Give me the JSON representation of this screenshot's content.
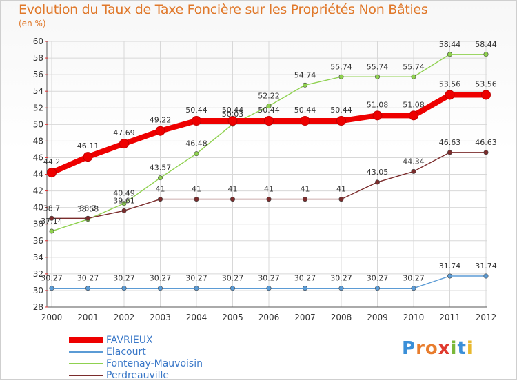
{
  "header": {
    "title": "Evolution du Taux de Taxe Foncière sur les Propriétés Non Bâties",
    "unit": "(en %)"
  },
  "logo": {
    "text": "Proxiti",
    "letters": [
      {
        "ch": "P",
        "color": "#3a8fd8"
      },
      {
        "ch": "r",
        "color": "#e87d2e"
      },
      {
        "ch": "o",
        "color": "#e87d2e"
      },
      {
        "ch": "x",
        "color": "#e03a2e"
      },
      {
        "ch": "i",
        "color": "#7ab83a"
      },
      {
        "ch": "t",
        "color": "#3a8fd8"
      },
      {
        "ch": "i",
        "color": "#e8b82e"
      }
    ]
  },
  "chart_data": {
    "type": "line",
    "title": "Evolution du Taux de Taxe Foncière sur les Propriétés Non Bâties",
    "ylabel": "(en %)",
    "xlabel": "",
    "x": [
      "2000",
      "2001",
      "2002",
      "2003",
      "2004",
      "2005",
      "2006",
      "2007",
      "2008",
      "2009",
      "2010",
      "2011",
      "2012"
    ],
    "ylim": [
      28,
      60
    ],
    "yticks": [
      28,
      30,
      32,
      34,
      36,
      38,
      40,
      42,
      44,
      46,
      48,
      50,
      52,
      54,
      56,
      58,
      60
    ],
    "grid": true,
    "legend": "bottom-left",
    "series": [
      {
        "name": "FAVRIEUX",
        "color": "#ee0000",
        "values": [
          44.2,
          46.11,
          47.69,
          49.22,
          50.44,
          50.44,
          50.44,
          50.44,
          50.44,
          51.08,
          51.08,
          53.56,
          53.56
        ],
        "labels": [
          "44.2",
          "46.11",
          "47.69",
          "49.22",
          "50.44",
          "50.44",
          "50.44",
          "50.44",
          "50.44",
          "51.08",
          "51.08",
          "53.56",
          "53.56"
        ]
      },
      {
        "name": "Elacourt",
        "color": "#5b9bd5",
        "values": [
          30.27,
          30.27,
          30.27,
          30.27,
          30.27,
          30.27,
          30.27,
          30.27,
          30.27,
          30.27,
          30.27,
          31.74,
          31.74
        ],
        "labels": [
          "30.27",
          "30.27",
          "30.27",
          "30.27",
          "30.27",
          "30.27",
          "30.27",
          "30.27",
          "30.27",
          "30.27",
          "30.27",
          "31.74",
          "31.74"
        ]
      },
      {
        "name": "Fontenay-Mauvoisin",
        "color": "#8fd14f",
        "values": [
          37.14,
          38.58,
          40.49,
          43.57,
          46.48,
          50.03,
          52.22,
          54.74,
          55.74,
          55.74,
          55.74,
          58.44,
          58.44
        ],
        "labels": [
          "37.14",
          "38.58",
          "40.49",
          "43.57",
          "46.48",
          "50.03",
          "52.22",
          "54.74",
          "55.74",
          "55.74",
          "55.74",
          "58.44",
          "58.44"
        ]
      },
      {
        "name": "Perdreauville",
        "color": "#7b2c2c",
        "values": [
          38.7,
          38.7,
          39.61,
          41,
          41,
          41,
          41,
          41,
          41,
          43.05,
          44.34,
          46.63,
          46.63
        ],
        "labels": [
          "38.7",
          "38.7",
          "39.61",
          "41",
          "41",
          "41",
          "41",
          "41",
          "41",
          "43.05",
          "44.34",
          "46.63",
          "46.63"
        ]
      }
    ]
  }
}
